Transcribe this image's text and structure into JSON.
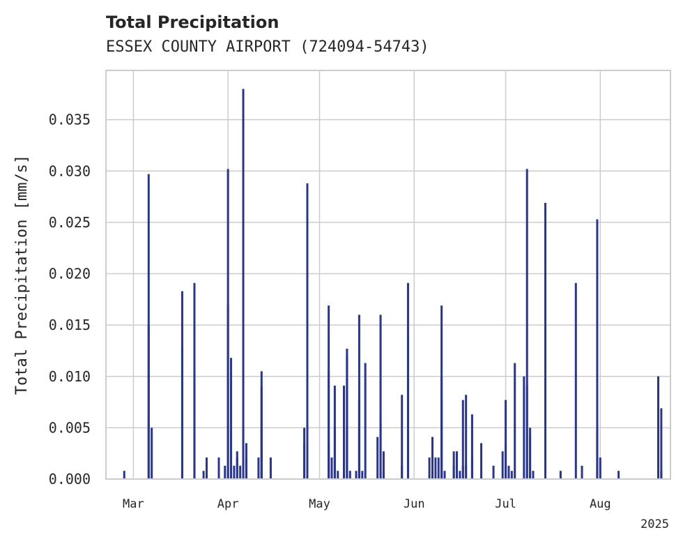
{
  "chart_data": {
    "type": "bar",
    "title": "Total Precipitation",
    "subtitle": "ESSEX COUNTY AIRPORT (724094-54743)",
    "xlabel": "",
    "ylabel": "Total Precipitation [mm/s]",
    "xlim": [
      "2025-02-20",
      "2025-08-24"
    ],
    "ylim": [
      0,
      0.0398
    ],
    "yticks": [
      0.0,
      0.005,
      0.01,
      0.015,
      0.02,
      0.025,
      0.03,
      0.035
    ],
    "ytick_labels": [
      "0.000",
      "0.005",
      "0.010",
      "0.015",
      "0.020",
      "0.025",
      "0.030",
      "0.035"
    ],
    "xticks": [
      "2025-03-01",
      "2025-04-01",
      "2025-05-01",
      "2025-06-01",
      "2025-07-01",
      "2025-08-01"
    ],
    "xtick_labels": [
      "Mar",
      "Apr",
      "May",
      "Jun",
      "Jul",
      "Aug"
    ],
    "year_label": "2025",
    "grid": true,
    "color": "#283593",
    "points": [
      [
        "2025-02-26",
        0.0008
      ],
      [
        "2025-03-06",
        0.0297
      ],
      [
        "2025-03-06",
        0.015
      ],
      [
        "2025-03-07",
        0.005
      ],
      [
        "2025-03-17",
        0.0183
      ],
      [
        "2025-03-17",
        0.0128
      ],
      [
        "2025-03-17",
        0.0008
      ],
      [
        "2025-03-21",
        0.0191
      ],
      [
        "2025-03-21",
        0.0105
      ],
      [
        "2025-03-21",
        0.0008
      ],
      [
        "2025-03-24",
        0.0008
      ],
      [
        "2025-03-25",
        0.0013
      ],
      [
        "2025-03-25",
        0.0021
      ],
      [
        "2025-03-29",
        0.0021
      ],
      [
        "2025-03-31",
        0.0013
      ],
      [
        "2025-04-01",
        0.0302
      ],
      [
        "2025-04-01",
        0.017
      ],
      [
        "2025-04-02",
        0.0118
      ],
      [
        "2025-04-02",
        0.0008
      ],
      [
        "2025-04-03",
        0.0013
      ],
      [
        "2025-04-04",
        0.0021
      ],
      [
        "2025-04-04",
        0.0027
      ],
      [
        "2025-04-05",
        0.0013
      ],
      [
        "2025-04-06",
        0.038
      ],
      [
        "2025-04-06",
        0.005
      ],
      [
        "2025-04-07",
        0.0021
      ],
      [
        "2025-04-07",
        0.0035
      ],
      [
        "2025-04-11",
        0.0021
      ],
      [
        "2025-04-12",
        0.0105
      ],
      [
        "2025-04-12",
        0.009
      ],
      [
        "2025-04-12",
        0.005
      ],
      [
        "2025-04-12",
        0.0008
      ],
      [
        "2025-04-15",
        0.0021
      ],
      [
        "2025-04-26",
        0.0035
      ],
      [
        "2025-04-26",
        0.005
      ],
      [
        "2025-04-27",
        0.0288
      ],
      [
        "2025-05-04",
        0.0105
      ],
      [
        "2025-05-04",
        0.0169
      ],
      [
        "2025-05-04",
        0.0035
      ],
      [
        "2025-05-05",
        0.0021
      ],
      [
        "2025-05-05",
        0.0013
      ],
      [
        "2025-05-06",
        0.005
      ],
      [
        "2025-05-06",
        0.0091
      ],
      [
        "2025-05-07",
        0.0008
      ],
      [
        "2025-05-09",
        0.0091
      ],
      [
        "2025-05-09",
        0.005
      ],
      [
        "2025-05-10",
        0.0127
      ],
      [
        "2025-05-10",
        0.012
      ],
      [
        "2025-05-10",
        0.005
      ],
      [
        "2025-05-11",
        0.0008
      ],
      [
        "2025-05-13",
        0.0008
      ],
      [
        "2025-05-14",
        0.005
      ],
      [
        "2025-05-14",
        0.0077
      ],
      [
        "2025-05-14",
        0.016
      ],
      [
        "2025-05-15",
        0.0008
      ],
      [
        "2025-05-16",
        0.0113
      ],
      [
        "2025-05-20",
        0.0041
      ],
      [
        "2025-05-21",
        0.016
      ],
      [
        "2025-05-21",
        0.0063
      ],
      [
        "2025-05-21",
        0.0055
      ],
      [
        "2025-05-22",
        0.0027
      ],
      [
        "2025-05-22",
        0.0008
      ],
      [
        "2025-05-28",
        0.0082
      ],
      [
        "2025-05-28",
        0.0013
      ],
      [
        "2025-05-30",
        0.014
      ],
      [
        "2025-05-30",
        0.0191
      ],
      [
        "2025-06-06",
        0.0021
      ],
      [
        "2025-06-07",
        0.0035
      ],
      [
        "2025-06-07",
        0.0041
      ],
      [
        "2025-06-08",
        0.0021
      ],
      [
        "2025-06-09",
        0.0021
      ],
      [
        "2025-06-10",
        0.01
      ],
      [
        "2025-06-10",
        0.0169
      ],
      [
        "2025-06-10",
        0.0077
      ],
      [
        "2025-06-11",
        0.0008
      ],
      [
        "2025-06-14",
        0.0013
      ],
      [
        "2025-06-14",
        0.0027
      ],
      [
        "2025-06-15",
        0.0027
      ],
      [
        "2025-06-16",
        0.0008
      ],
      [
        "2025-06-17",
        0.0077
      ],
      [
        "2025-06-17",
        0.0013
      ],
      [
        "2025-06-18",
        0.0082
      ],
      [
        "2025-06-18",
        0.0013
      ],
      [
        "2025-06-20",
        0.0063
      ],
      [
        "2025-06-20",
        0.0021
      ],
      [
        "2025-06-23",
        0.0035
      ],
      [
        "2025-06-27",
        0.0013
      ],
      [
        "2025-06-30",
        0.0027
      ],
      [
        "2025-07-01",
        0.0077
      ],
      [
        "2025-07-01",
        0.0035
      ],
      [
        "2025-07-02",
        0.0013
      ],
      [
        "2025-07-03",
        0.0008
      ],
      [
        "2025-07-04",
        0.0113
      ],
      [
        "2025-07-07",
        0.01
      ],
      [
        "2025-07-08",
        0.0302
      ],
      [
        "2025-07-08",
        0.0091
      ],
      [
        "2025-07-09",
        0.005
      ],
      [
        "2025-07-09",
        0.0041
      ],
      [
        "2025-07-10",
        0.0008
      ],
      [
        "2025-07-14",
        0.0008
      ],
      [
        "2025-07-14",
        0.0269
      ],
      [
        "2025-07-14",
        0.0155
      ],
      [
        "2025-07-19",
        0.0008
      ],
      [
        "2025-07-24",
        0.0191
      ],
      [
        "2025-07-26",
        0.0013
      ],
      [
        "2025-07-31",
        0.0008
      ],
      [
        "2025-07-31",
        0.0253
      ],
      [
        "2025-07-31",
        0.005
      ],
      [
        "2025-08-01",
        0.0021
      ],
      [
        "2025-08-07",
        0.0008
      ],
      [
        "2025-08-20",
        0.01
      ],
      [
        "2025-08-20",
        0.005
      ],
      [
        "2025-08-21",
        0.0008
      ],
      [
        "2025-08-21",
        0.0069
      ]
    ]
  }
}
